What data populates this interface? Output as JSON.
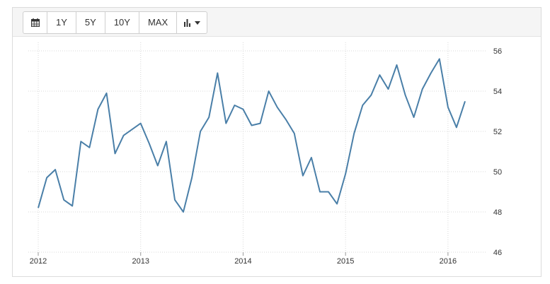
{
  "toolbar": {
    "buttons": [
      {
        "id": "calendar",
        "icon": "calendar-icon"
      },
      {
        "id": "1y",
        "label": "1Y"
      },
      {
        "id": "5y",
        "label": "5Y"
      },
      {
        "id": "10y",
        "label": "10Y"
      },
      {
        "id": "max",
        "label": "MAX"
      },
      {
        "id": "chart-type",
        "icon": "bar-chart-icon"
      }
    ]
  },
  "chart_data": {
    "type": "line",
    "title": "",
    "xlabel": "",
    "ylabel": "",
    "ylim": [
      46,
      56
    ],
    "yticks": [
      46,
      48,
      50,
      52,
      54,
      56
    ],
    "xticks": [
      "2012",
      "2013",
      "2014",
      "2015",
      "2016"
    ],
    "xlim": [
      "2012-01",
      "2016-03"
    ],
    "y_axis_position": "right",
    "grid": true,
    "line_color": "#4a7fa8",
    "series": [
      {
        "x": [
          "2012-01",
          "2012-02",
          "2012-03",
          "2012-04",
          "2012-05",
          "2012-06",
          "2012-07",
          "2012-08",
          "2012-09",
          "2012-10",
          "2012-11",
          "2012-12",
          "2013-01",
          "2013-02",
          "2013-03",
          "2013-04",
          "2013-05",
          "2013-06",
          "2013-07",
          "2013-08",
          "2013-09",
          "2013-10",
          "2013-11",
          "2013-12",
          "2014-01",
          "2014-02",
          "2014-03",
          "2014-04",
          "2014-05",
          "2014-06",
          "2014-07",
          "2014-08",
          "2014-09",
          "2014-10",
          "2014-11",
          "2014-12",
          "2015-01",
          "2015-02",
          "2015-03",
          "2015-04",
          "2015-05",
          "2015-06",
          "2015-07",
          "2015-08",
          "2015-09",
          "2015-10",
          "2015-11",
          "2015-12",
          "2016-01",
          "2016-02",
          "2016-03"
        ],
        "values": [
          48.2,
          49.7,
          50.1,
          48.6,
          48.3,
          51.5,
          51.2,
          53.1,
          53.9,
          50.9,
          51.8,
          52.1,
          52.4,
          51.4,
          50.3,
          51.5,
          48.6,
          48.0,
          49.7,
          52.0,
          52.7,
          54.9,
          52.4,
          53.3,
          53.1,
          52.3,
          52.4,
          54.0,
          53.2,
          52.6,
          51.9,
          49.8,
          50.7,
          49.0,
          49.0,
          48.4,
          49.9,
          51.9,
          53.3,
          53.8,
          54.8,
          54.1,
          55.3,
          53.8,
          52.7,
          54.1,
          54.9,
          55.6,
          53.2,
          52.2,
          53.5
        ]
      }
    ]
  }
}
